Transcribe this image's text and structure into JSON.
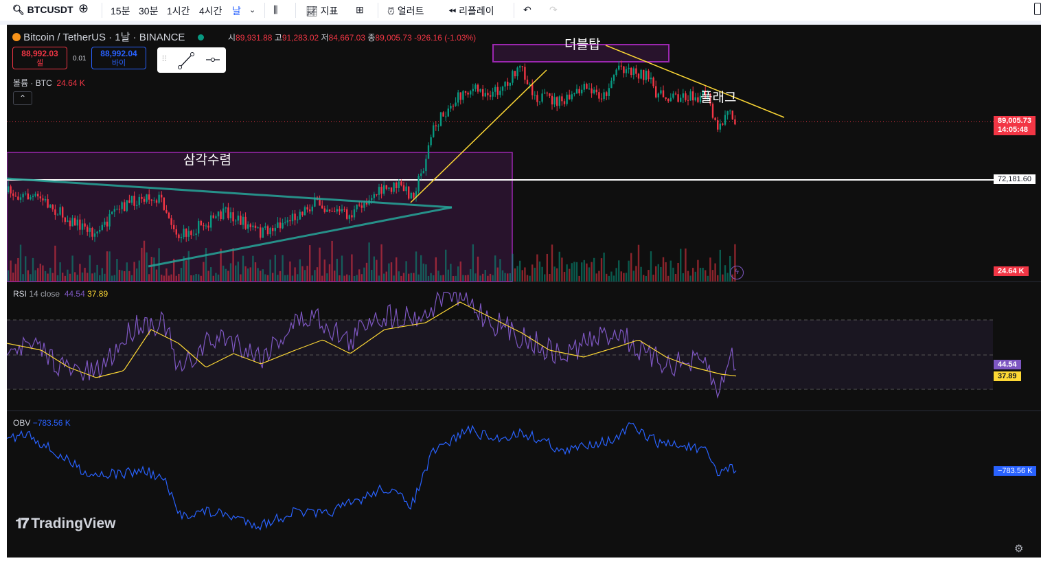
{
  "toolbar": {
    "symbol": "BTCUSDT",
    "intervals": [
      "15분",
      "30분",
      "1시간",
      "4시간",
      "날"
    ],
    "indicators": "지표",
    "alert": "얼러트",
    "replay": "리플레이"
  },
  "legend": {
    "title": "Bitcoin / TetherUS · 1날 · BINANCE",
    "o_label": "시",
    "o": "89,931.88",
    "h_label": "고",
    "h": "91,283.02",
    "l_label": "저",
    "l": "84,667.03",
    "c_label": "종",
    "c": "89,005.73",
    "change": "-926.16 (-1.03%)"
  },
  "trade": {
    "sell_price": "88,992.03",
    "sell_label": "셀",
    "spread": "0.01",
    "buy_price": "88,992.04",
    "buy_label": "바이"
  },
  "volume": {
    "label": "볼륨 · BTC",
    "value": "24.64 K"
  },
  "annotations": {
    "triangle": "삼각수렴",
    "double_top": "더블탑",
    "flag": "플래그"
  },
  "price_axis": {
    "last_price": "89,005.73",
    "countdown": "14:05:48",
    "hline": "72,181.60",
    "volume": "24.64 K"
  },
  "rsi": {
    "label": "RSI",
    "params": "14 close",
    "value": "44.54",
    "ma": "37.89"
  },
  "obv": {
    "label": "OBV",
    "value": "−783.56 K",
    "axis": "−783.56 K"
  },
  "branding": "TradingView",
  "colors": {
    "up": "#089981",
    "down": "#f23645",
    "rsi": "#7e57c2",
    "rsi_ma": "#fdd835",
    "obv": "#2962ff",
    "annotation_box": "#9c27b0"
  }
}
